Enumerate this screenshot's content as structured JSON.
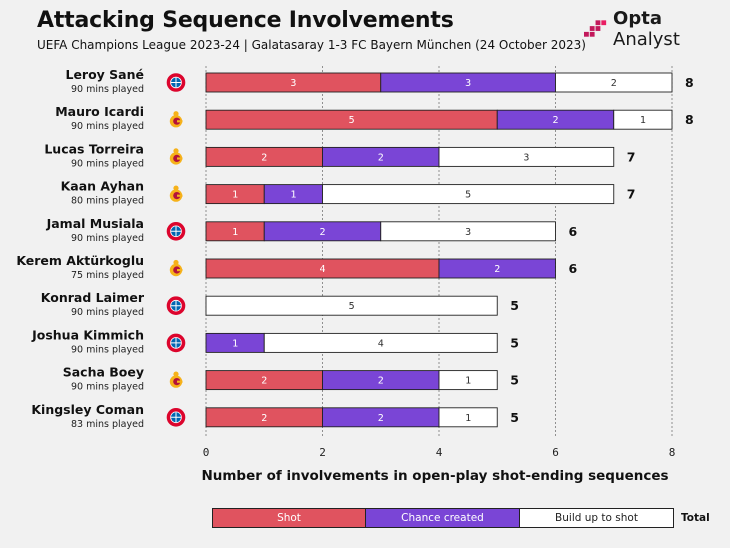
{
  "header": {
    "title": "Attacking Sequence Involvements",
    "subtitle": "UEFA Champions League 2023-24 | Galatasaray 1-3 FC Bayern München (24 October 2023)",
    "brand_name_bold": "Opta",
    "brand_name_rest": " Analyst"
  },
  "colors": {
    "shot": "#e0535f",
    "chance_created": "#7a45d6",
    "build_up": "#ffffff",
    "bayern": "#dc052d",
    "galatasaray_yellow": "#f6b21a",
    "galatasaray_red": "#b3123b"
  },
  "legend": {
    "shot": "Shot",
    "chance_created": "Chance created",
    "build_up": "Build up to shot",
    "total": "Total"
  },
  "chart_data": {
    "type": "bar",
    "orientation": "horizontal",
    "stacked": true,
    "xlabel": "Number of involvements in open-play shot-ending sequences",
    "xlim": [
      0,
      8
    ],
    "xticks": [
      0,
      2,
      4,
      6,
      8
    ],
    "grid": "vertical-dashed",
    "legend_position": "bottom",
    "players": [
      {
        "name": "Leroy Sané",
        "mins": "90 mins played",
        "club": "bayern",
        "shot": 3,
        "chance_created": 3,
        "build_up": 2,
        "total": 8
      },
      {
        "name": "Mauro Icardi",
        "mins": "90 mins played",
        "club": "galatasaray",
        "shot": 5,
        "chance_created": 2,
        "build_up": 1,
        "total": 8
      },
      {
        "name": "Lucas Torreira",
        "mins": "90 mins played",
        "club": "galatasaray",
        "shot": 2,
        "chance_created": 2,
        "build_up": 3,
        "total": 7
      },
      {
        "name": "Kaan Ayhan",
        "mins": "80 mins played",
        "club": "galatasaray",
        "shot": 1,
        "chance_created": 1,
        "build_up": 5,
        "total": 7
      },
      {
        "name": "Jamal Musiala",
        "mins": "90 mins played",
        "club": "bayern",
        "shot": 1,
        "chance_created": 2,
        "build_up": 3,
        "total": 6
      },
      {
        "name": "Kerem Aktürkoglu",
        "mins": "75 mins played",
        "club": "galatasaray",
        "shot": 4,
        "chance_created": 2,
        "build_up": 0,
        "total": 6
      },
      {
        "name": "Konrad Laimer",
        "mins": "90 mins played",
        "club": "bayern",
        "shot": 0,
        "chance_created": 0,
        "build_up": 5,
        "total": 5
      },
      {
        "name": "Joshua Kimmich",
        "mins": "90 mins played",
        "club": "bayern",
        "shot": 0,
        "chance_created": 1,
        "build_up": 4,
        "total": 5
      },
      {
        "name": "Sacha Boey",
        "mins": "90 mins played",
        "club": "galatasaray",
        "shot": 2,
        "chance_created": 2,
        "build_up": 1,
        "total": 5
      },
      {
        "name": "Kingsley Coman",
        "mins": "83 mins played",
        "club": "bayern",
        "shot": 2,
        "chance_created": 2,
        "build_up": 1,
        "total": 5
      }
    ]
  }
}
